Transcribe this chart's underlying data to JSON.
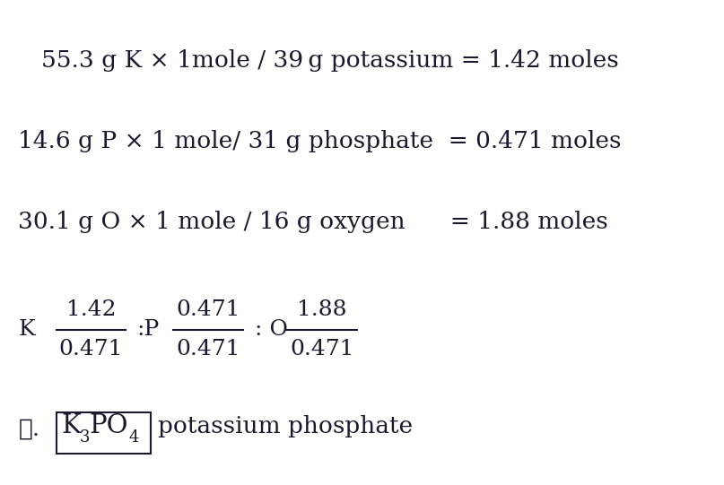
{
  "background_color": "#ffffff",
  "text_color": "#1a1a2e",
  "figsize": [
    8.07,
    5.41
  ],
  "dpi": 100,
  "line1": "55.3 g K × 1mole / 39 g potassium = 1.42 moles",
  "line2": "14.6 g P × 1 mole/ 31 g phosphate  = 0.471 moles",
  "line3": "30.1 g O × 1 mole / 16 g oxygen      = 1.88 moles",
  "ratio_K_label": "K",
  "ratio_K_num": "1.42",
  "ratio_K_den": "0.471",
  "ratio_P_label": ":P",
  "ratio_P_num": "0.471",
  "ratio_P_den": "0.471",
  "ratio_O_label": ": O",
  "ratio_O_num": "1.88",
  "ratio_O_den": "0.471",
  "conclusion_therefore": "∴.",
  "formula_K": "K",
  "formula_sub3": "3",
  "formula_PO": "PO",
  "formula_sub4": "4",
  "conclusion_suffix": "potassium phosphate",
  "font_size_main": 19,
  "font_size_ratio": 18,
  "font_size_conclusion": 19,
  "font_size_sub": 13,
  "font_family": "DejaVu Serif"
}
